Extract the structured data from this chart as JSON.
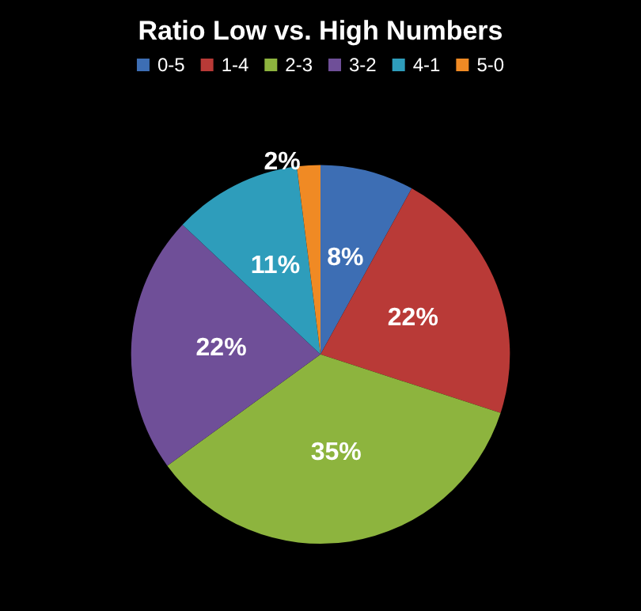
{
  "chart_data": {
    "type": "pie",
    "title": "Ratio Low vs. High Numbers",
    "categories": [
      "0-5",
      "1-4",
      "2-3",
      "3-2",
      "4-1",
      "5-0"
    ],
    "values": [
      8,
      22,
      35,
      22,
      11,
      2
    ],
    "colors": [
      "#3d6eb4",
      "#b93a37",
      "#8db43e",
      "#6f4f98",
      "#2e9dbb",
      "#f08a24"
    ],
    "value_labels": [
      "8%",
      "22%",
      "35%",
      "22%",
      "11%",
      "2%"
    ],
    "legend": "top"
  }
}
